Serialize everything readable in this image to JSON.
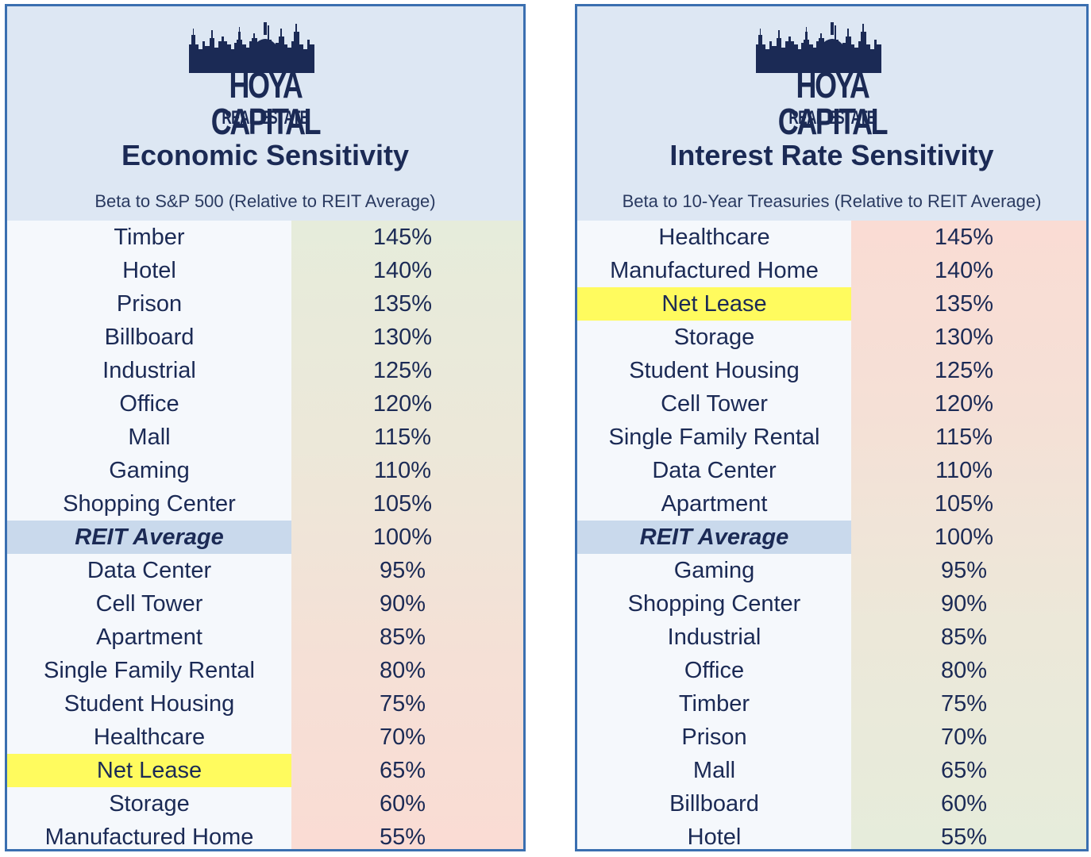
{
  "logo": {
    "main": "HOYA CAPITAL",
    "sub": "REAL ESTATE"
  },
  "panels": [
    {
      "title": "Economic Sensitivity",
      "subtitle": "Beta to S&P 500 (Relative to REIT Average)",
      "rows": [
        {
          "name": "Timber",
          "value": "145%"
        },
        {
          "name": "Hotel",
          "value": "140%"
        },
        {
          "name": "Prison",
          "value": "135%"
        },
        {
          "name": "Billboard",
          "value": "130%"
        },
        {
          "name": "Industrial",
          "value": "125%"
        },
        {
          "name": "Office",
          "value": "120%"
        },
        {
          "name": "Mall",
          "value": "115%"
        },
        {
          "name": "Gaming",
          "value": "110%"
        },
        {
          "name": "Shopping Center",
          "value": "105%"
        },
        {
          "name": "REIT Average",
          "value": "100%",
          "type": "avg"
        },
        {
          "name": "Data Center",
          "value": "95%"
        },
        {
          "name": "Cell Tower",
          "value": "90%"
        },
        {
          "name": "Apartment",
          "value": "85%"
        },
        {
          "name": "Single Family Rental",
          "value": "80%"
        },
        {
          "name": "Student Housing",
          "value": "75%"
        },
        {
          "name": "Healthcare",
          "value": "70%"
        },
        {
          "name": "Net Lease",
          "value": "65%",
          "type": "highlight"
        },
        {
          "name": "Storage",
          "value": "60%"
        },
        {
          "name": "Manufactured Home",
          "value": "55%"
        }
      ]
    },
    {
      "title": "Interest Rate Sensitivity",
      "subtitle": "Beta to 10-Year Treasuries (Relative to REIT Average)",
      "rows": [
        {
          "name": "Healthcare",
          "value": "145%"
        },
        {
          "name": "Manufactured Home",
          "value": "140%"
        },
        {
          "name": "Net Lease",
          "value": "135%",
          "type": "highlight"
        },
        {
          "name": "Storage",
          "value": "130%"
        },
        {
          "name": "Student Housing",
          "value": "125%"
        },
        {
          "name": "Cell Tower",
          "value": "120%"
        },
        {
          "name": "Single Family Rental",
          "value": "115%"
        },
        {
          "name": "Data Center",
          "value": "110%"
        },
        {
          "name": "Apartment",
          "value": "105%"
        },
        {
          "name": "REIT Average",
          "value": "100%",
          "type": "avg"
        },
        {
          "name": "Gaming",
          "value": "95%"
        },
        {
          "name": "Shopping Center",
          "value": "90%"
        },
        {
          "name": "Industrial",
          "value": "85%"
        },
        {
          "name": "Office",
          "value": "80%"
        },
        {
          "name": "Timber",
          "value": "75%"
        },
        {
          "name": "Prison",
          "value": "70%"
        },
        {
          "name": "Mall",
          "value": "65%"
        },
        {
          "name": "Billboard",
          "value": "60%"
        },
        {
          "name": "Hotel",
          "value": "55%"
        }
      ]
    }
  ],
  "colors": {
    "navy": "#1b2a55",
    "border": "#3a6fb0",
    "header_bg": "#dde7f3",
    "highlight": "#fffb5e",
    "avg_bg": "#c9d9ec",
    "green_tint": "#e6ecdb",
    "red_tint": "#fadcd4"
  }
}
